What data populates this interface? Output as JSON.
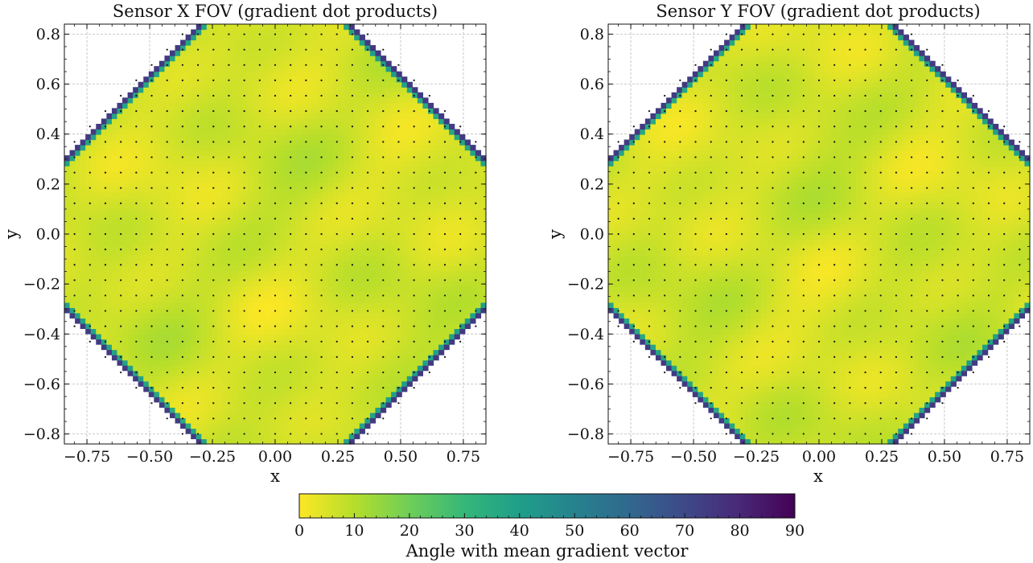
{
  "chart_data": [
    {
      "type": "heatmap",
      "title": "Sensor X FOV (gradient dot products)",
      "xlabel": "x",
      "ylabel": "y",
      "xlim": [
        -0.84,
        0.84
      ],
      "ylim": [
        -0.84,
        0.84
      ],
      "xticks": [
        -0.75,
        -0.5,
        -0.25,
        0.0,
        0.25,
        0.5,
        0.75
      ],
      "xtick_labels": [
        "−0.75",
        "−0.50",
        "−0.25",
        "0.00",
        "0.25",
        "0.50",
        "0.75"
      ],
      "yticks": [
        -0.8,
        -0.6,
        -0.4,
        -0.2,
        0.0,
        0.2,
        0.4,
        0.6,
        0.8
      ],
      "ytick_labels": [
        "−0.8",
        "−0.6",
        "−0.4",
        "−0.2",
        "0.0",
        "0.2",
        "0.4",
        "0.6",
        "0.8"
      ],
      "grid": true,
      "region": "octagon, |x| <= 0.84, |y| <= 0.84, |x|+|y| <= 1.14",
      "field_range": [
        0,
        12
      ],
      "edge_value": 85,
      "sample_grid_spacing": 0.0615
    },
    {
      "type": "heatmap",
      "title": "Sensor Y FOV (gradient dot products)",
      "xlabel": "x",
      "ylabel": "y",
      "xlim": [
        -0.84,
        0.84
      ],
      "ylim": [
        -0.84,
        0.84
      ],
      "xticks": [
        -0.75,
        -0.5,
        -0.25,
        0.0,
        0.25,
        0.5,
        0.75
      ],
      "xtick_labels": [
        "−0.75",
        "−0.50",
        "−0.25",
        "0.00",
        "0.25",
        "0.50",
        "0.75"
      ],
      "yticks": [
        -0.8,
        -0.6,
        -0.4,
        -0.2,
        0.0,
        0.2,
        0.4,
        0.6,
        0.8
      ],
      "ytick_labels": [
        "−0.8",
        "−0.6",
        "−0.4",
        "−0.2",
        "0.0",
        "0.2",
        "0.4",
        "0.6",
        "0.8"
      ],
      "grid": true,
      "region": "octagon, |x| <= 0.84, |y| <= 0.84, |x|+|y| <= 1.14",
      "field_range": [
        0,
        12
      ],
      "edge_value": 85,
      "sample_grid_spacing": 0.0615
    }
  ],
  "colorbar": {
    "label": "Angle with mean gradient vector",
    "min": 0,
    "max": 90,
    "ticks": [
      0,
      10,
      20,
      30,
      40,
      50,
      60,
      70,
      80,
      90
    ],
    "tick_labels": [
      "0",
      "10",
      "20",
      "30",
      "40",
      "50",
      "60",
      "70",
      "80",
      "90"
    ],
    "colormap": "viridis_r",
    "stops": [
      "#fde725",
      "#b5de2b",
      "#6ece58",
      "#35b779",
      "#1f9e89",
      "#26828e",
      "#31688e",
      "#3e4989",
      "#482878",
      "#440154"
    ]
  },
  "colors": {
    "dots": "#111111",
    "grid": "#b0b0b0",
    "axes": "#111111"
  }
}
